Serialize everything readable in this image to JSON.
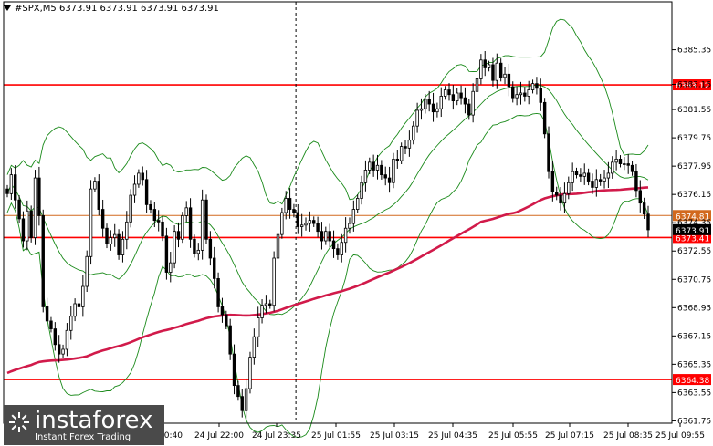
{
  "header": {
    "text": "#SPX,M5  6373.91 6373.91 6373.91 6373.91"
  },
  "watermark": {
    "brand": "instaforex",
    "tagline": "Instant Forex Trading"
  },
  "colors": {
    "background": "#ffffff",
    "candle": "#000000",
    "band": "#1a8a1a",
    "ma": "#d11a4a",
    "level_line": "#ff0000",
    "price_line": "#d2691e",
    "grid": "#000000"
  },
  "chart_data": {
    "type": "candlestick",
    "symbol": "#SPX",
    "timeframe": "M5",
    "ylim": [
      6361.6,
      6388.4
    ],
    "y_ticks": [
      "6385.35",
      "6383.15",
      "6381.55",
      "6379.75",
      "6377.95",
      "6376.15",
      "6374.35",
      "6372.55",
      "6370.75",
      "6368.95",
      "6367.15",
      "6365.35",
      "6363.55",
      "6361.75"
    ],
    "x_ticks": [
      "24 Jul 20:40",
      "24 Jul 22:00",
      "24 Jul 23:35",
      "25 Jul 01:55",
      "25 Jul 03:15",
      "25 Jul 04:35",
      "25 Jul 05:55",
      "25 Jul 07:15",
      "25 Jul 08:35",
      "25 Jul 09:55"
    ],
    "levels": [
      {
        "value": 6383.12,
        "label": "6383.12",
        "color": "#ff0000"
      },
      {
        "value": 6373.41,
        "label": "6373.41",
        "color": "#ff0000"
      },
      {
        "value": 6364.38,
        "label": "6364.38",
        "color": "#ff0000"
      }
    ],
    "price_line": {
      "value": 6374.81,
      "label": "6374.81",
      "color": "#d2691e"
    },
    "current_price": {
      "value": 6373.91,
      "label": "6373.91"
    },
    "session_separator_x_index": 72,
    "closes": [
      6376.2,
      6377.4,
      6375.8,
      6374.6,
      6373.2,
      6375.1,
      6373.4,
      6377.2,
      6374.8,
      6369.0,
      6368.1,
      6367.6,
      6366.6,
      6366.0,
      6366.3,
      6367.5,
      6368.4,
      6369.2,
      6369.0,
      6370.3,
      6372.2,
      6376.5,
      6377.0,
      6375.2,
      6374.0,
      6373.0,
      6373.4,
      6373.6,
      6372.3,
      6373.3,
      6374.4,
      6376.1,
      6376.8,
      6377.5,
      6377.1,
      6375.5,
      6375.2,
      6374.5,
      6374.4,
      6373.5,
      6371.2,
      6371.8,
      6373.8,
      6373.3,
      6374.8,
      6375.3,
      6373.3,
      6372.4,
      6372.6,
      6375.8,
      6373.3,
      6372.1,
      6370.8,
      6369.0,
      6368.5,
      6367.8,
      6366.0,
      6364.0,
      6363.3,
      6362.4,
      6363.8,
      6365.8,
      6367.1,
      6368.3,
      6369.1,
      6369.2,
      6369.1,
      6372.1,
      6373.6,
      6375.0,
      6375.9,
      6375.2,
      6375.0,
      6374.1,
      6374.2,
      6374.3,
      6374.5,
      6374.3,
      6373.8,
      6373.2,
      6373.8,
      6373.2,
      6372.7,
      6372.3,
      6373.1,
      6374.0,
      6374.3,
      6375.2,
      6375.9,
      6376.9,
      6377.7,
      6378.2,
      6377.7,
      6378.0,
      6377.4,
      6377.2,
      6376.9,
      6378.4,
      6378.3,
      6379.2,
      6379.1,
      6379.6,
      6380.5,
      6381.5,
      6381.6,
      6382.2,
      6381.9,
      6381.4,
      6381.6,
      6382.4,
      6382.8,
      6382.5,
      6382.1,
      6382.6,
      6382.3,
      6381.9,
      6381.2,
      6382.7,
      6383.5,
      6384.7,
      6384.2,
      6384.4,
      6383.4,
      6384.5,
      6383.6,
      6383.8,
      6383.0,
      6382.3,
      6382.5,
      6382.6,
      6382.4,
      6382.8,
      6383.2,
      6382.9,
      6382.0,
      6380.0,
      6377.6,
      6376.3,
      6376.1,
      6375.6,
      6376.2,
      6376.9,
      6377.6,
      6377.4,
      6377.3,
      6377.5,
      6377.0,
      6376.6,
      6377.1,
      6377.0,
      6377.2,
      6377.5,
      6378.2,
      6378.4,
      6378.1,
      6378.1,
      6378.0,
      6377.6,
      6376.4,
      6375.6,
      6374.9,
      6373.9
    ]
  }
}
